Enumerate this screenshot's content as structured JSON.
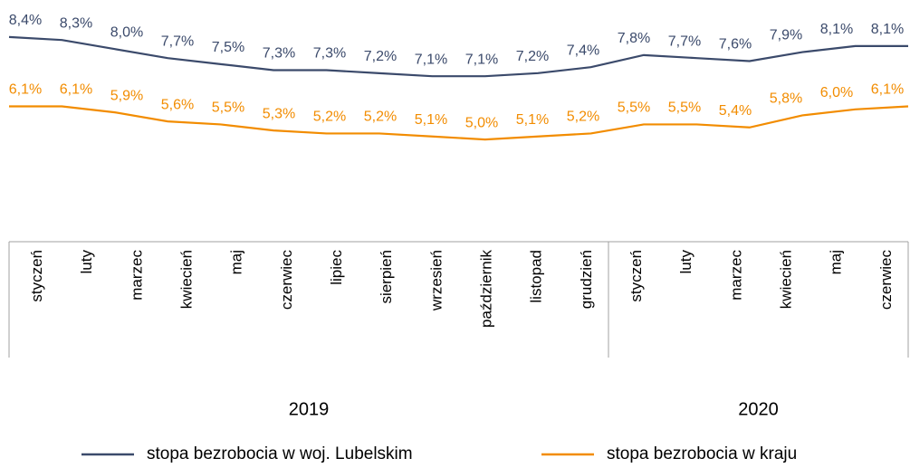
{
  "chart_data": {
    "type": "line",
    "categories": [
      "styczeń",
      "luty",
      "marzec",
      "kwiecień",
      "maj",
      "czerwiec",
      "lipiec",
      "sierpień",
      "wrzesień",
      "październik",
      "listopad",
      "grudzień",
      "styczeń",
      "luty",
      "marzec",
      "kwiecień",
      "maj",
      "czerwiec"
    ],
    "years": [
      "2019",
      "2019",
      "2019",
      "2019",
      "2019",
      "2019",
      "2019",
      "2019",
      "2019",
      "2019",
      "2019",
      "2019",
      "2020",
      "2020",
      "2020",
      "2020",
      "2020",
      "2020"
    ],
    "legend": "bottom",
    "series": [
      {
        "name": "stopa bezrobocia w woj. Lubelskim",
        "color": "#3b4a6b",
        "values": [
          8.4,
          8.3,
          8.0,
          7.7,
          7.5,
          7.3,
          7.3,
          7.2,
          7.1,
          7.1,
          7.2,
          7.4,
          7.8,
          7.7,
          7.6,
          7.9,
          8.1,
          8.1
        ],
        "value_labels": [
          "8,4%",
          "8,3%",
          "8,0%",
          "7,7%",
          "7,5%",
          "7,3%",
          "7,3%",
          "7,2%",
          "7,1%",
          "7,1%",
          "7,2%",
          "7,4%",
          "7,8%",
          "7,7%",
          "7,6%",
          "7,9%",
          "8,1%",
          "8,1%"
        ]
      },
      {
        "name": "stopa bezrobocia w kraju",
        "color": "#f28c00",
        "values": [
          6.1,
          6.1,
          5.9,
          5.6,
          5.5,
          5.3,
          5.2,
          5.2,
          5.1,
          5.0,
          5.1,
          5.2,
          5.5,
          5.5,
          5.4,
          5.8,
          6.0,
          6.1
        ],
        "value_labels": [
          "6,1%",
          "6,1%",
          "5,9%",
          "5,6%",
          "5,5%",
          "5,3%",
          "5,2%",
          "5,2%",
          "5,1%",
          "5,0%",
          "5,1%",
          "5,2%",
          "5,5%",
          "5,5%",
          "5,4%",
          "5,8%",
          "6,0%",
          "6,1%"
        ]
      }
    ]
  }
}
